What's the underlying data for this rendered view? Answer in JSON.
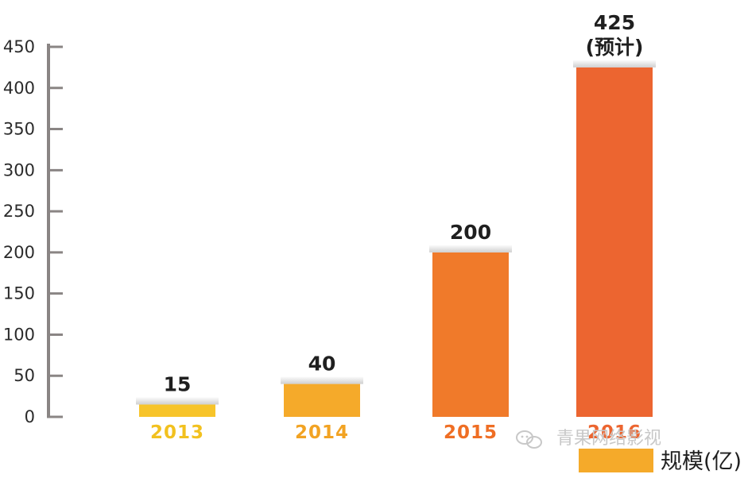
{
  "chart_data": {
    "type": "bar",
    "categories": [
      "2013",
      "2014",
      "2015",
      "2016"
    ],
    "values": [
      15,
      40,
      200,
      425
    ],
    "value_labels": [
      "15",
      "40",
      "200",
      "425"
    ],
    "value_notes": [
      "",
      "",
      "",
      "(预计)"
    ],
    "ylim": [
      0,
      450
    ],
    "yticks": [
      0,
      50,
      100,
      150,
      200,
      250,
      300,
      350,
      400,
      450
    ],
    "grid": false,
    "legend": {
      "label": "规模(亿)",
      "color": "#f5aa2a",
      "position": "bottom-right"
    },
    "bar_colors": [
      "#f7c42a",
      "#f5aa2a",
      "#f07a2a",
      "#ec6530"
    ],
    "year_colors": [
      "#f2c11f",
      "#f2a323",
      "#ef6e24",
      "#ec6530"
    ],
    "axis_color": "#8a8584"
  },
  "watermark": {
    "text": "青果网络影视",
    "icon": "wechat-icon"
  }
}
